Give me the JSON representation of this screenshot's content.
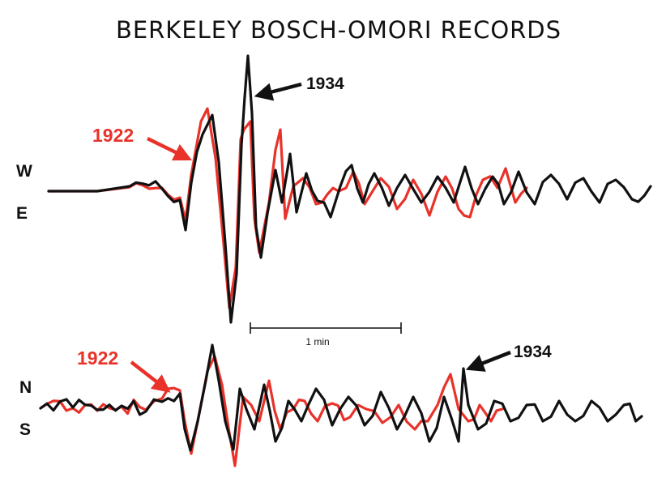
{
  "title": "BERKELEY BOSCH-OMORI RECORDS",
  "colors": {
    "record_1922": "#e8322a",
    "record_1934": "#111111"
  },
  "panels": {
    "ew": {
      "component_top": "W",
      "component_bottom": "E",
      "label_1922": "1922",
      "label_1934": "1934"
    },
    "ns": {
      "component_top": "N",
      "component_bottom": "S",
      "label_1922": "1922",
      "label_1934": "1934"
    }
  },
  "scale_bar": {
    "label": "1 min"
  }
}
